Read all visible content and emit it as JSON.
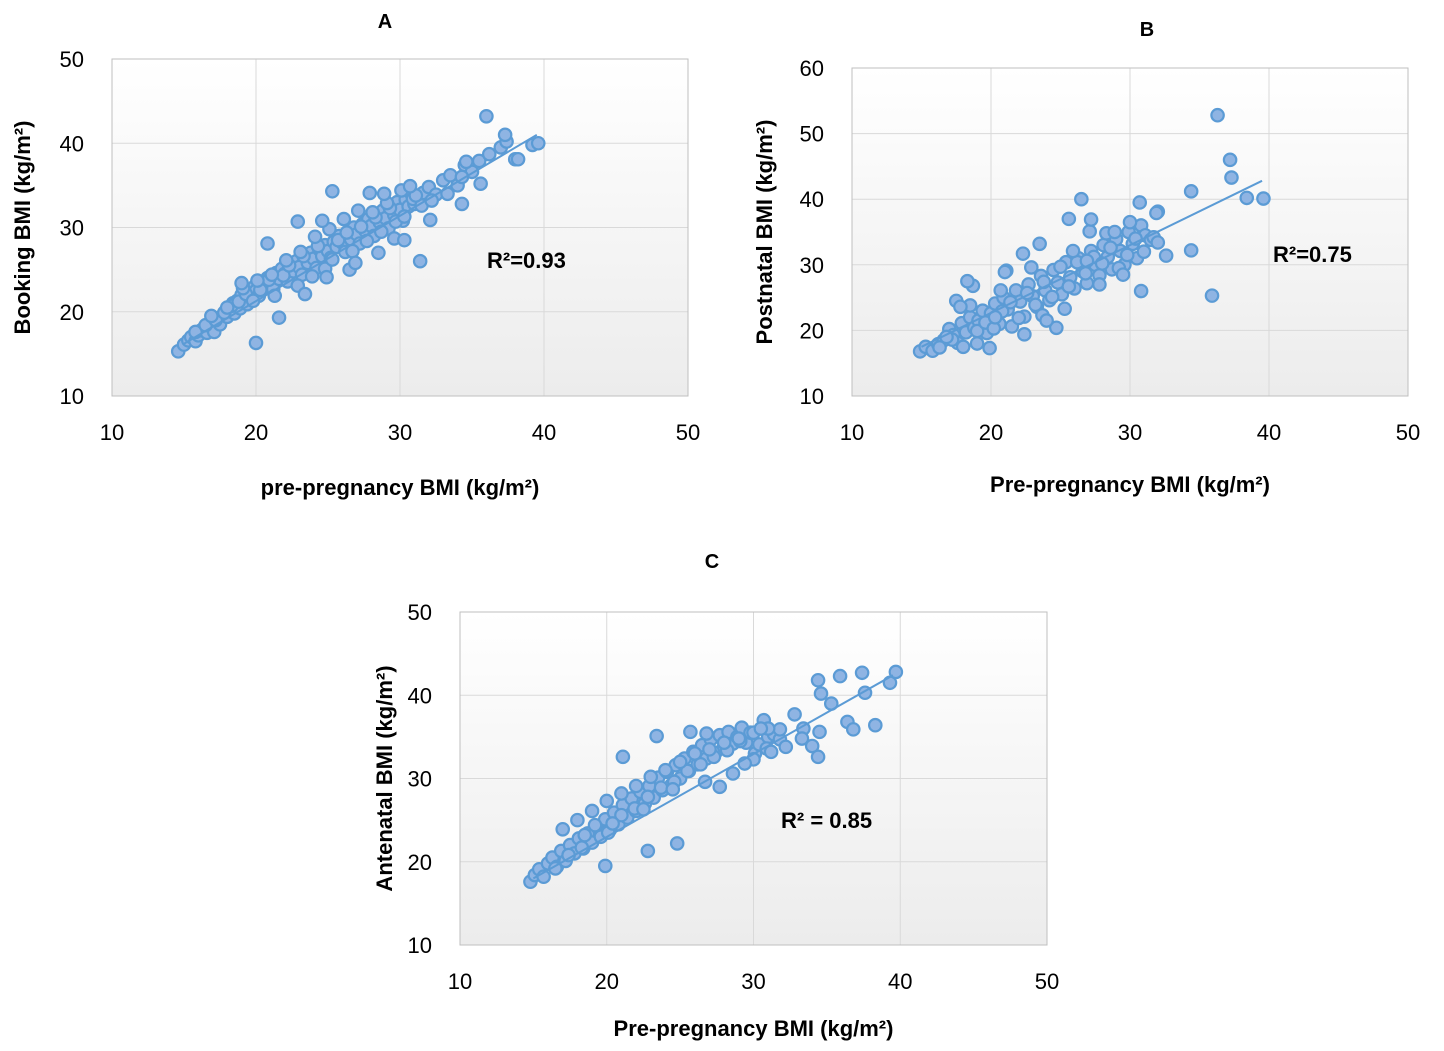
{
  "chart_data": [
    {
      "type": "scatter",
      "title": "A",
      "xlabel": "pre-pregnancy BMI (kg/m²)",
      "ylabel": "Booking BMI (kg/m²)",
      "xlim": [
        10,
        50
      ],
      "ylim": [
        10,
        50
      ],
      "xticks": [
        "10",
        "20",
        "30",
        "40",
        "50"
      ],
      "yticks": [
        "10",
        "20",
        "30",
        "40",
        "50"
      ],
      "grid": true,
      "annotation": "R²=0.93",
      "trendline": {
        "x": [
          15,
          39.5
        ],
        "y": [
          16.2,
          41.0
        ]
      },
      "series": [
        {
          "x": [
            14.6,
            15.0,
            15.3,
            15.5,
            15.8,
            16.0,
            16.2,
            16.4,
            16.6,
            16.8,
            17.0,
            17.1,
            17.3,
            17.5,
            17.7,
            17.9,
            18.0,
            18.2,
            18.4,
            18.5,
            18.7,
            18.9,
            19.0,
            19.2,
            19.4,
            19.5,
            19.7,
            19.9,
            20.0,
            20.2,
            20.4,
            20.6,
            20.8,
            21.0,
            21.2,
            21.4,
            21.6,
            21.8,
            22.0,
            22.2,
            22.4,
            22.6,
            22.8,
            23.0,
            23.2,
            23.4,
            23.6,
            23.8,
            24.0,
            24.2,
            24.4,
            24.6,
            24.8,
            25.0,
            25.2,
            25.4,
            25.6,
            25.8,
            26.0,
            26.2,
            26.4,
            26.6,
            26.8,
            27.0,
            27.2,
            27.4,
            27.6,
            27.8,
            28.0,
            28.2,
            28.4,
            28.6,
            28.8,
            29.0,
            29.2,
            29.4,
            29.6,
            29.8,
            30.0,
            30.2,
            30.4,
            30.6,
            30.8,
            31.0,
            31.3,
            31.6,
            32.0,
            32.5,
            33.0,
            33.5,
            34.0,
            34.5,
            35.0,
            35.5,
            36.2,
            37.0,
            37.4,
            38.0,
            39.2,
            39.6,
            15.8,
            16.5,
            17.2,
            17.8,
            18.3,
            18.8,
            19.3,
            19.8,
            20.3,
            20.9,
            21.3,
            21.9,
            22.3,
            22.9,
            23.3,
            23.9,
            24.3,
            24.8,
            25.3,
            25.7,
            26.3,
            26.7,
            27.3,
            27.7,
            28.3,
            28.7,
            29.3,
            29.7,
            30.3,
            30.9,
            31.5,
            32.2,
            34.3,
            34.6,
            16.9,
            18.0,
            19.1,
            20.1,
            21.1,
            22.1,
            23.1,
            24.1,
            25.1,
            26.1,
            27.1,
            28.1,
            29.1,
            30.1,
            31.1,
            20.0,
            20.8,
            22.9,
            24.6,
            25.3,
            27.9,
            28.9,
            30.7,
            31.4,
            33.3,
            35.6,
            37.3,
            38.2,
            34.3,
            36.0,
            19.0,
            21.6,
            23.4,
            26.5,
            28.5,
            29.6,
            32.1,
            24.9,
            26.9,
            30.3
          ],
          "y": [
            15.3,
            16.1,
            16.6,
            17.0,
            16.5,
            17.2,
            17.8,
            18.1,
            17.5,
            18.4,
            18.9,
            17.6,
            19.2,
            18.5,
            19.6,
            20.1,
            19.4,
            20.6,
            21.0,
            19.8,
            21.3,
            20.4,
            22.0,
            21.5,
            20.9,
            22.4,
            21.8,
            23.0,
            22.5,
            21.9,
            23.3,
            22.8,
            24.0,
            23.4,
            22.7,
            24.6,
            23.9,
            25.1,
            24.5,
            23.6,
            25.4,
            24.8,
            26.0,
            25.3,
            24.4,
            26.5,
            25.8,
            27.0,
            26.3,
            25.2,
            27.4,
            26.6,
            27.9,
            27.2,
            26.4,
            28.3,
            27.7,
            29.0,
            28.2,
            27.1,
            29.3,
            28.6,
            30.0,
            29.2,
            28.1,
            30.4,
            29.6,
            31.0,
            30.2,
            29.0,
            31.4,
            30.6,
            32.0,
            31.1,
            29.9,
            32.4,
            31.5,
            33.0,
            32.1,
            30.8,
            33.3,
            32.5,
            34.0,
            32.8,
            33.5,
            34.1,
            34.8,
            33.9,
            35.6,
            36.2,
            35.0,
            37.4,
            36.6,
            37.9,
            38.7,
            39.5,
            40.2,
            38.1,
            39.8,
            40.0,
            17.6,
            18.4,
            19.0,
            19.9,
            20.7,
            21.2,
            22.1,
            21.3,
            22.6,
            23.8,
            21.9,
            24.3,
            25.5,
            23.1,
            26.6,
            24.2,
            27.8,
            25.1,
            26.2,
            28.5,
            29.4,
            27.2,
            30.1,
            28.4,
            31.2,
            29.5,
            32.3,
            30.7,
            31.3,
            33.4,
            32.6,
            33.2,
            36.0,
            37.8,
            19.5,
            20.5,
            22.8,
            23.7,
            24.4,
            26.1,
            27.1,
            28.9,
            29.8,
            31.0,
            32.0,
            31.8,
            32.9,
            34.4,
            33.8,
            16.3,
            28.1,
            30.7,
            30.8,
            34.3,
            34.1,
            34.0,
            34.9,
            26.0,
            34.0,
            35.2,
            41.0,
            38.1,
            32.8,
            43.2,
            23.4,
            19.3,
            22.1,
            25.0,
            27.0,
            28.7,
            30.9,
            24.1,
            25.8,
            28.5
          ]
        }
      ]
    },
    {
      "type": "scatter",
      "title": "B",
      "xlabel": "Pre-pregnancy BMI (kg/m²)",
      "ylabel": "Postnatal BMI (kg/m²)",
      "xlim": [
        10,
        50
      ],
      "ylim": [
        10,
        60
      ],
      "xticks": [
        "10",
        "20",
        "30",
        "40",
        "50"
      ],
      "yticks": [
        "10",
        "20",
        "30",
        "40",
        "50",
        "60"
      ],
      "grid": true,
      "annotation": "R²=0.75",
      "trendline": {
        "x": [
          15,
          39.5
        ],
        "y": [
          17.5,
          42.8
        ]
      },
      "series": [
        {
          "x": [
            14.9,
            15.3,
            15.8,
            16.2,
            16.6,
            17.0,
            17.3,
            17.6,
            17.9,
            18.2,
            18.5,
            18.8,
            19.1,
            19.4,
            19.7,
            20.0,
            20.3,
            20.6,
            20.9,
            21.2,
            21.5,
            21.8,
            22.1,
            22.4,
            22.7,
            23.0,
            23.3,
            23.6,
            23.9,
            24.2,
            24.5,
            24.8,
            25.1,
            25.4,
            25.7,
            26.0,
            26.3,
            26.6,
            26.9,
            27.2,
            27.5,
            27.8,
            28.1,
            28.4,
            28.7,
            29.0,
            29.3,
            29.6,
            29.9,
            30.2,
            30.5,
            30.8,
            31.1,
            31.5,
            32.0,
            32.6,
            34.4,
            35.9,
            36.3,
            37.2,
            37.3,
            38.4,
            39.6,
            17.2,
            18.0,
            18.5,
            19.0,
            19.6,
            20.2,
            20.8,
            21.4,
            22.0,
            22.6,
            23.2,
            23.8,
            24.4,
            25.0,
            25.6,
            26.2,
            26.8,
            27.4,
            28.0,
            28.6,
            29.2,
            29.8,
            30.4,
            31.0,
            31.7,
            16.3,
            17.5,
            18.7,
            19.9,
            21.1,
            22.3,
            23.5,
            24.7,
            25.9,
            27.1,
            28.3,
            29.5,
            30.7,
            31.9,
            34.4,
            30.8,
            26.5,
            23.7,
            21.0,
            18.3,
            27.2,
            25.6,
            22.4,
            20.3,
            19.0,
            24.0,
            28.9,
            30.0,
            32.0,
            26.9,
            22.9,
            17.8,
            16.8,
            20.7,
            25.3,
            27.8
          ],
          "y": [
            16.8,
            17.5,
            16.9,
            17.9,
            18.5,
            20.2,
            19.3,
            18.1,
            21.1,
            19.7,
            22.0,
            20.4,
            21.5,
            23.0,
            19.6,
            22.6,
            24.1,
            21.0,
            25.0,
            23.2,
            20.6,
            26.1,
            24.4,
            22.1,
            27.0,
            25.2,
            23.6,
            28.3,
            26.1,
            24.6,
            29.2,
            27.3,
            25.5,
            30.4,
            28.1,
            26.4,
            31.0,
            29.0,
            27.2,
            32.1,
            30.0,
            28.4,
            33.0,
            31.2,
            29.3,
            33.9,
            32.1,
            30.0,
            35.0,
            33.2,
            31.0,
            36.0,
            34.5,
            33.8,
            38.1,
            31.4,
            41.2,
            25.3,
            52.8,
            46.0,
            43.3,
            40.2,
            40.1,
            18.6,
            17.5,
            23.8,
            19.9,
            21.2,
            20.3,
            22.9,
            24.3,
            21.9,
            25.7,
            23.9,
            27.4,
            25.1,
            29.7,
            26.7,
            30.4,
            28.7,
            31.2,
            30.2,
            32.6,
            29.5,
            31.5,
            34.0,
            32.0,
            34.2,
            17.4,
            24.5,
            26.8,
            17.3,
            29.1,
            31.7,
            33.2,
            20.4,
            32.1,
            35.1,
            34.8,
            28.5,
            39.5,
            37.9,
            32.2,
            26.0,
            40.0,
            22.3,
            28.9,
            27.5,
            36.9,
            37.0,
            19.4,
            22.0,
            18.0,
            21.5,
            35.0,
            36.5,
            33.4,
            30.6,
            29.6,
            23.6,
            19.0,
            26.1,
            23.3,
            27.0
          ]
        }
      ]
    },
    {
      "type": "scatter",
      "title": "C",
      "xlabel": "Pre-pregnancy BMI (kg/m²)",
      "ylabel": "Antenatal BMI (kg/m²)",
      "xlim": [
        10,
        50
      ],
      "ylim": [
        10,
        50
      ],
      "xticks": [
        "10",
        "20",
        "30",
        "40",
        "50"
      ],
      "yticks": [
        "10",
        "20",
        "30",
        "40",
        "50"
      ],
      "grid": true,
      "annotation": "R² = 0.85",
      "trendline": {
        "x": [
          15,
          39.5
        ],
        "y": [
          18.0,
          42.4
        ]
      },
      "series": [
        {
          "x": [
            14.8,
            15.1,
            15.4,
            15.7,
            16.0,
            16.3,
            16.6,
            16.9,
            17.2,
            17.5,
            17.8,
            18.1,
            18.4,
            18.7,
            19.0,
            19.3,
            19.6,
            19.9,
            20.2,
            20.5,
            20.8,
            21.1,
            21.4,
            21.7,
            22.0,
            22.3,
            22.6,
            22.9,
            23.2,
            23.5,
            23.8,
            24.1,
            24.4,
            24.7,
            25.0,
            25.3,
            25.6,
            25.9,
            26.2,
            26.5,
            26.8,
            27.1,
            27.4,
            27.7,
            28.0,
            28.3,
            28.6,
            28.9,
            29.2,
            29.5,
            29.8,
            30.1,
            30.4,
            30.7,
            31.0,
            31.4,
            31.8,
            32.2,
            32.8,
            33.4,
            34.0,
            34.4,
            34.6,
            35.3,
            35.9,
            36.4,
            36.8,
            37.4,
            37.6,
            38.3,
            39.3,
            39.7,
            16.5,
            17.4,
            18.3,
            19.2,
            20.1,
            21.0,
            21.9,
            22.8,
            23.7,
            24.6,
            25.5,
            26.4,
            27.3,
            28.2,
            29.1,
            30.0,
            30.9,
            31.8,
            17.0,
            18.0,
            19.0,
            20.0,
            21.0,
            22.0,
            23.0,
            24.0,
            25.0,
            26.0,
            27.0,
            28.0,
            29.0,
            30.0,
            31.0,
            21.1,
            23.4,
            25.7,
            26.8,
            24.8,
            30.5,
            19.9,
            22.8,
            34.5,
            34.4,
            18.5,
            20.4,
            22.5,
            24.5,
            26.7,
            28.6,
            29.4,
            31.2,
            33.3,
            27.7
          ],
          "y": [
            17.6,
            18.4,
            19.1,
            18.2,
            19.8,
            20.5,
            19.4,
            21.3,
            20.1,
            22.0,
            21.0,
            22.8,
            21.6,
            23.4,
            22.3,
            24.3,
            23.0,
            25.1,
            23.8,
            25.9,
            24.5,
            26.8,
            25.3,
            27.6,
            26.1,
            28.4,
            27.0,
            29.1,
            27.7,
            30.1,
            28.6,
            30.8,
            29.2,
            31.6,
            30.0,
            32.4,
            30.9,
            33.2,
            31.7,
            34.0,
            32.4,
            34.7,
            33.1,
            35.2,
            33.8,
            35.6,
            34.2,
            35.0,
            36.1,
            34.3,
            35.5,
            33.0,
            34.1,
            37.0,
            35.0,
            35.3,
            34.7,
            33.8,
            37.7,
            36.0,
            33.9,
            41.8,
            40.2,
            39.0,
            42.3,
            36.8,
            35.9,
            42.7,
            40.3,
            36.4,
            41.5,
            42.8,
            19.2,
            20.8,
            21.7,
            24.4,
            23.5,
            25.6,
            26.4,
            27.8,
            28.9,
            29.6,
            30.9,
            31.7,
            32.6,
            33.4,
            34.5,
            32.3,
            33.6,
            35.9,
            23.9,
            25.0,
            26.1,
            27.3,
            28.2,
            29.1,
            30.2,
            31.0,
            32.0,
            33.0,
            33.5,
            34.3,
            34.8,
            35.5,
            36.0,
            32.6,
            35.1,
            35.6,
            35.4,
            22.2,
            36.0,
            19.5,
            21.3,
            35.6,
            32.6,
            23.2,
            24.6,
            26.3,
            28.7,
            29.6,
            30.6,
            31.8,
            33.2,
            34.8,
            29.0
          ]
        }
      ]
    }
  ]
}
